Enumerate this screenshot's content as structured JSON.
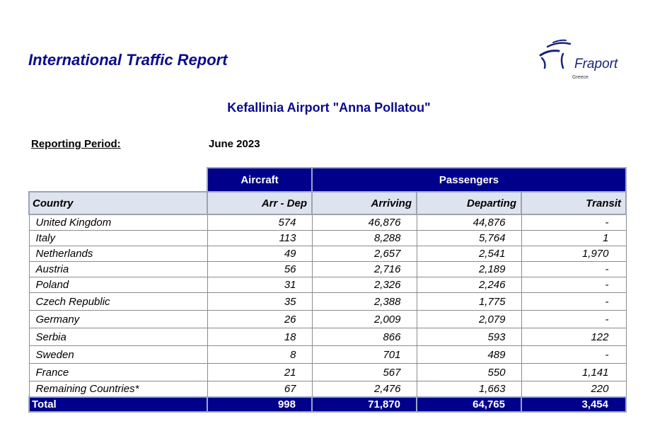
{
  "report": {
    "title": "International Traffic Report",
    "airport": "Kefallinia Airport \"Anna Pollatou\"",
    "period_label": "Reporting Period:",
    "period_value": "June 2023"
  },
  "logo": {
    "word": "Fraport",
    "sub": "Greece"
  },
  "table": {
    "group_aircraft": "Aircraft",
    "group_passengers": "Passengers",
    "headers": [
      "Country",
      "Arr - Dep",
      "Arriving",
      "Departing",
      "Transit"
    ],
    "rows": [
      [
        "United Kingdom",
        "574",
        "46,876",
        "44,876",
        "-"
      ],
      [
        "Italy",
        "113",
        "8,288",
        "5,764",
        "1"
      ],
      [
        "Netherlands",
        "49",
        "2,657",
        "2,541",
        "1,970"
      ],
      [
        "Austria",
        "56",
        "2,716",
        "2,189",
        "-"
      ],
      [
        "Poland",
        "31",
        "2,326",
        "2,246",
        "-"
      ],
      [
        "Czech Republic",
        "35",
        "2,388",
        "1,775",
        "-"
      ],
      [
        "Germany",
        "26",
        "2,009",
        "2,079",
        "-"
      ],
      [
        "Serbia",
        "18",
        "866",
        "593",
        "122"
      ],
      [
        "Sweden",
        "8",
        "701",
        "489",
        "-"
      ],
      [
        "France",
        "21",
        "567",
        "550",
        "1,141"
      ],
      [
        "Remaining Countries*",
        "67",
        "2,476",
        "1,663",
        "220"
      ]
    ],
    "total": [
      "Total",
      "998",
      "71,870",
      "64,765",
      "3,454"
    ]
  },
  "colors": {
    "brand": "#0b0b8c",
    "header_fill": "#00008b",
    "subheader_fill": "#dde4ef"
  }
}
